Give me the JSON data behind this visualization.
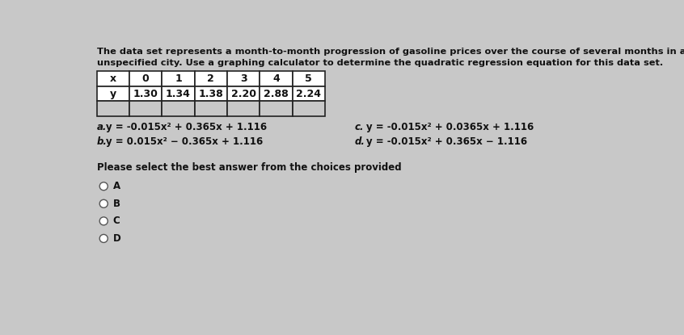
{
  "title_line1": "The data set represents a month-to-month progression of gasoline prices over the course of several months in an",
  "title_line2": "unspecified city. Use a graphing calculator to determine the quadratic regression equation for this data set.",
  "table_x_label": "x",
  "table_y_label": "y",
  "table_x_values": [
    "0",
    "1",
    "2",
    "3",
    "4",
    "5"
  ],
  "table_y_values": [
    "1.30",
    "1.34",
    "1.38",
    "2.20",
    "2.88",
    "2.24"
  ],
  "choice_a_label": "a.",
  "choice_b_label": "b.",
  "choice_c_label": "c.",
  "choice_d_label": "d.",
  "choice_a": "y = -0.015x² + 0.365x + 1.116",
  "choice_b": "y = 0.015x² − 0.365x + 1.116",
  "choice_c": "y = -0.015x² + 0.0365x + 1.116",
  "choice_d": "y = -0.015x² + 0.365x − 1.116",
  "prompt": "Please select the best answer from the choices provided",
  "radio_labels": [
    "A",
    "B",
    "C",
    "D"
  ],
  "background_color": "#c8c8c8",
  "table_bg": "#ffffff",
  "table_empty_bg": "#c8c8c8",
  "text_color": "#111111",
  "table_border_color": "#222222"
}
